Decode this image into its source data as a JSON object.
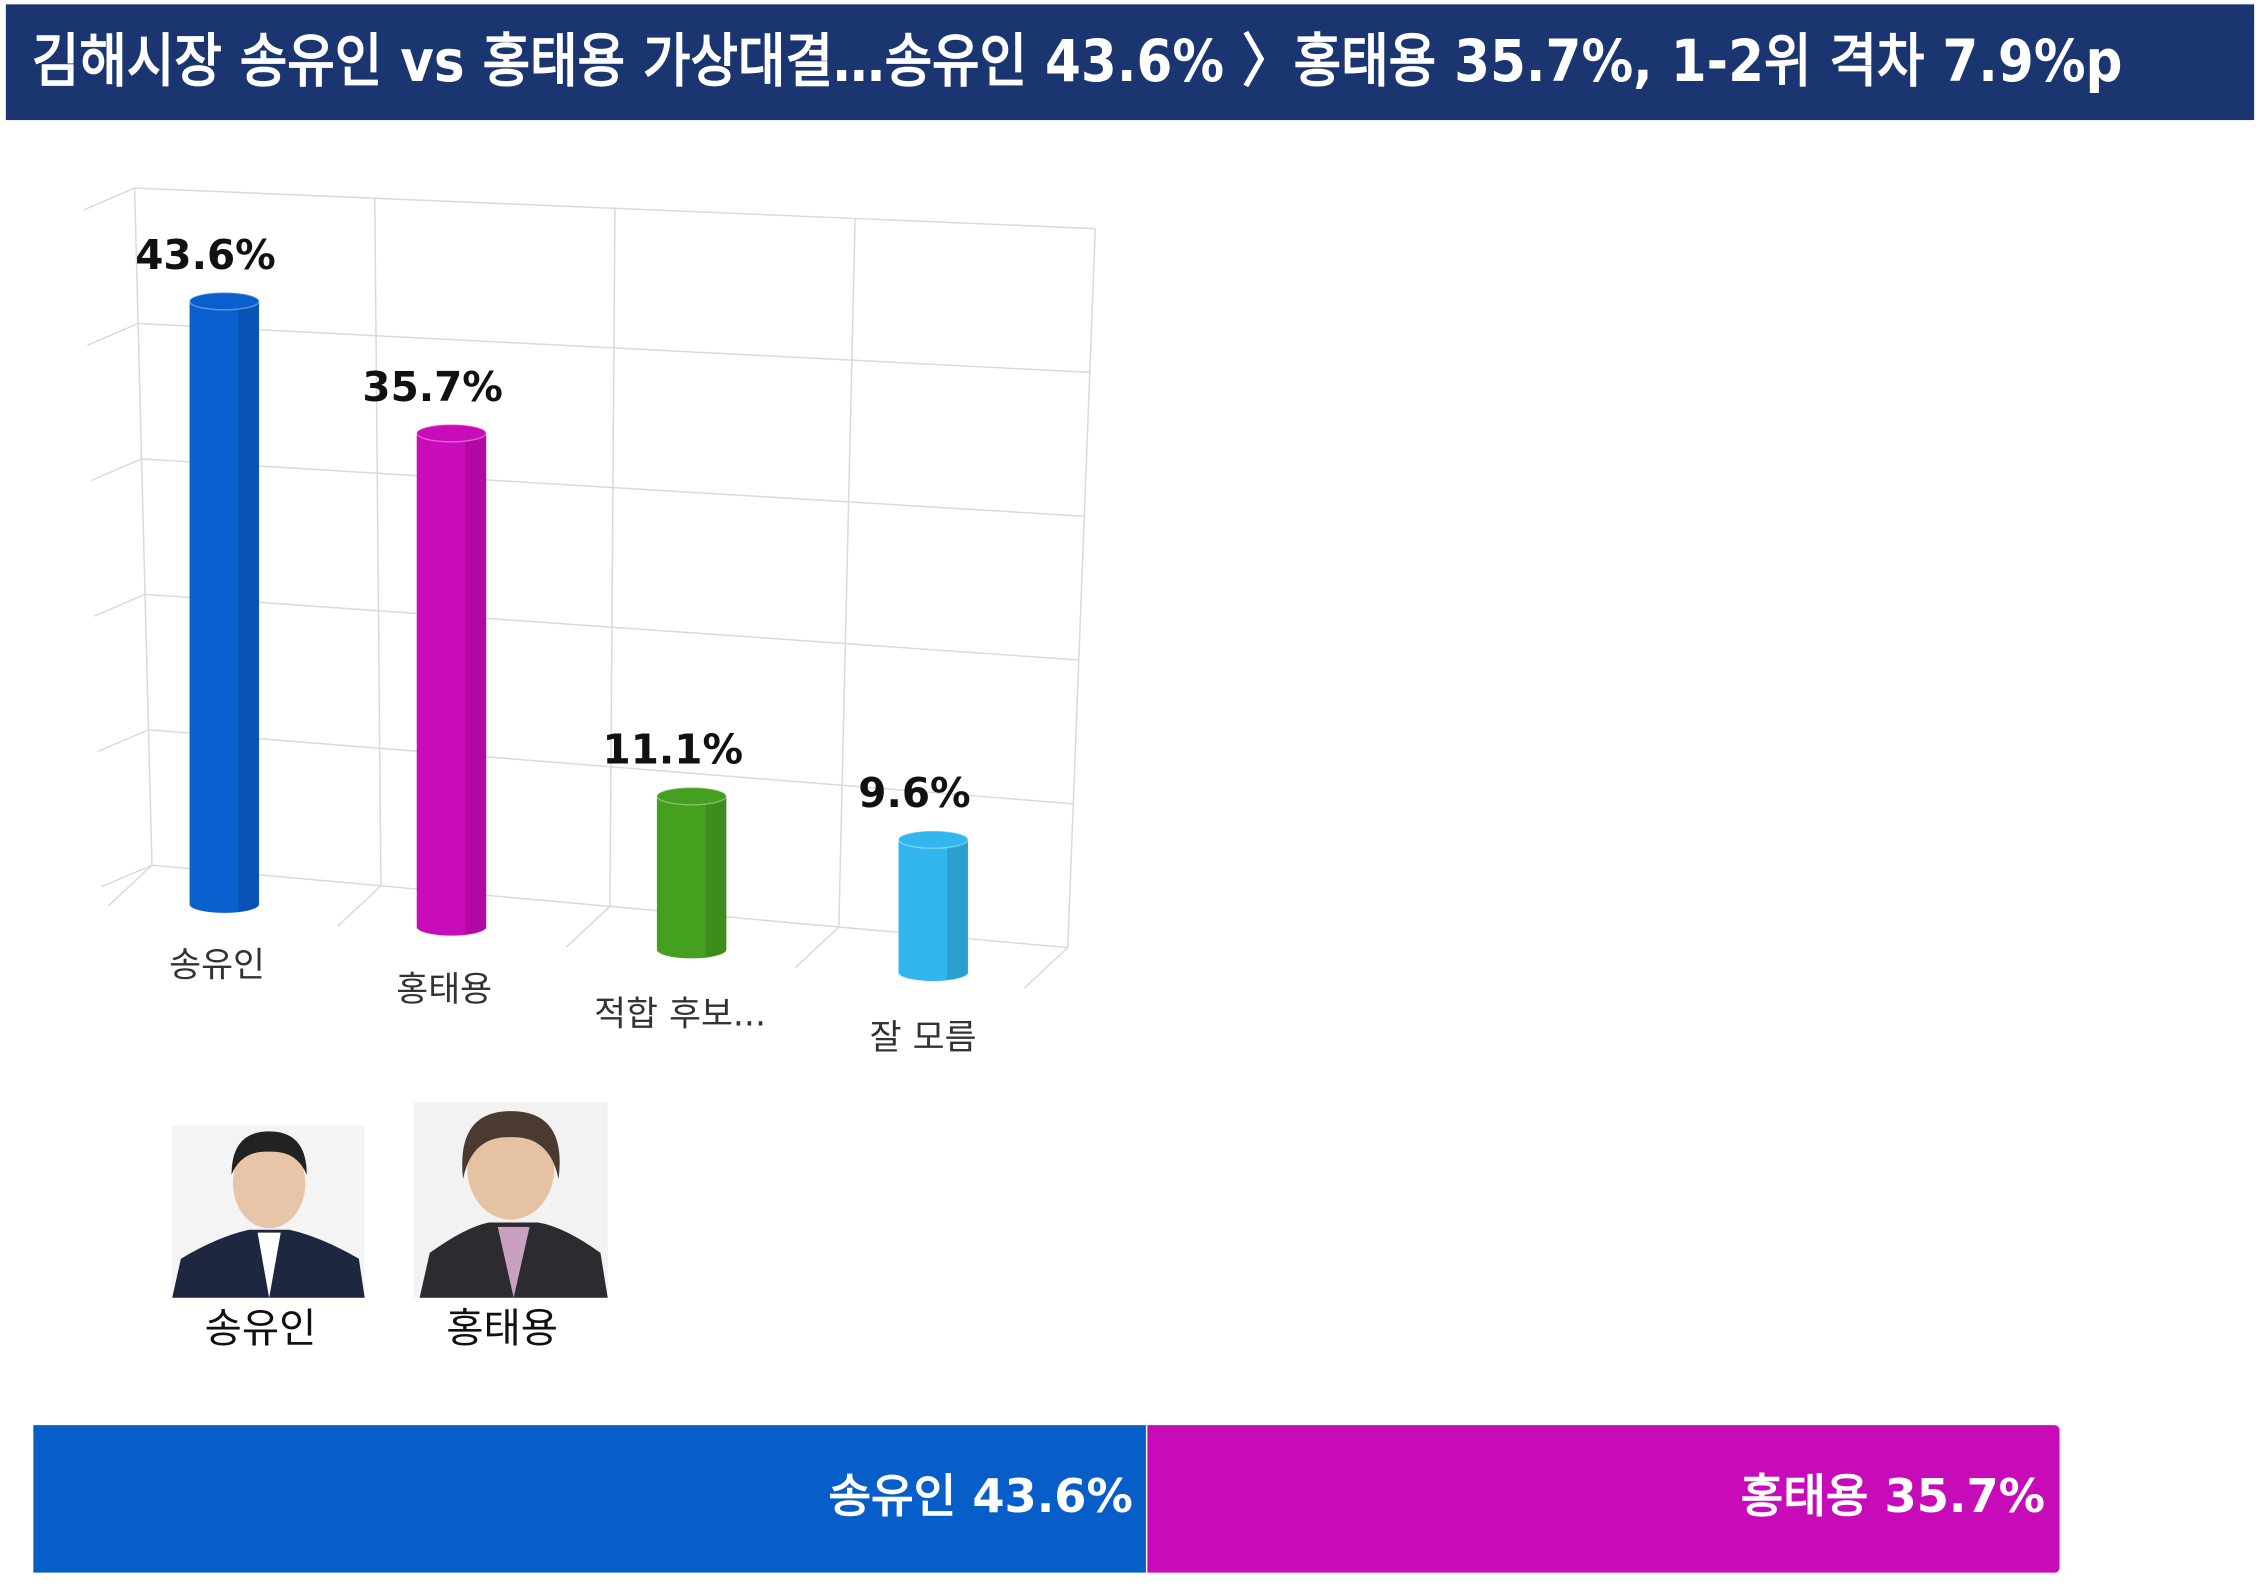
{
  "header": {
    "title": "김해시장 송유인 vs 홍태용 가상대결…송유인 43.6% 〉홍태용 35.7%, 1-2위 격차 7.9%p"
  },
  "chart_data": [
    {
      "type": "bar",
      "categories": [
        "송유인",
        "홍태용",
        "적합 후보...",
        "잘 모름"
      ],
      "values": [
        43.6,
        35.7,
        11.1,
        9.6
      ],
      "value_labels": [
        "43.6%",
        "35.7%",
        "11.1%",
        "9.6%"
      ],
      "colors": [
        "#0a5fcf",
        "#c90cba",
        "#46a020",
        "#33b6ee"
      ],
      "ylim": [
        0,
        50
      ],
      "yticks": [
        0,
        10,
        20,
        30,
        40,
        50
      ],
      "grid": true
    },
    {
      "type": "stacked_hbar",
      "series": [
        {
          "name": "송유인",
          "color": "#085ec9",
          "values": [
            43.6
          ],
          "value_labels": [
            "43.6%"
          ]
        },
        {
          "name": "홍태용",
          "color": "#c80bb8",
          "values": [
            35.7
          ],
          "value_labels": [
            "35.7%"
          ]
        }
      ]
    }
  ],
  "photos": [
    {
      "caption": "송유인"
    },
    {
      "caption": "홍태용"
    }
  ]
}
